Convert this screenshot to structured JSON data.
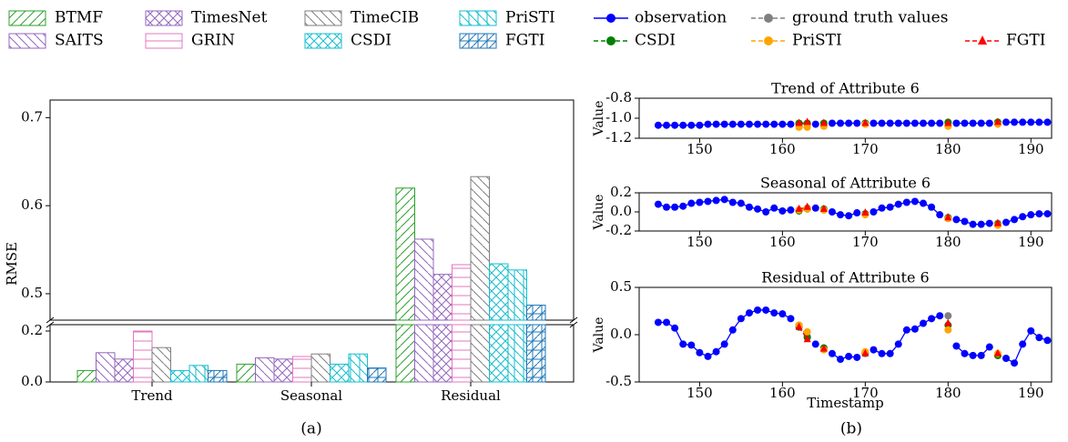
{
  "captions": [
    "(a)",
    "(b)"
  ],
  "chart_data": [
    {
      "type": "bar",
      "y_label": "RMSE",
      "categories": [
        "Trend",
        "Seasonal",
        "Residual"
      ],
      "axes": [
        {
          "ylim": [
            0,
            0.225
          ],
          "yticks": [
            {
              "value": 0,
              "label": "0.0"
            },
            0.2
          ]
        },
        {
          "ylim": [
            0.47,
            0.72
          ],
          "yticks": [
            0.5,
            0.6,
            0.7
          ]
        }
      ],
      "series": [
        {
          "name": "BTMF",
          "color": "#2ca02c",
          "hatch": "/",
          "values": [
            0.045,
            0.07,
            0.62
          ]
        },
        {
          "name": "SAITS",
          "color": "#9467bd",
          "hatch": "\\",
          "values": [
            0.115,
            0.095,
            0.562
          ]
        },
        {
          "name": "TimesNet",
          "color": "#9467bd",
          "hatch": "/\\",
          "values": [
            0.09,
            0.09,
            0.522
          ]
        },
        {
          "name": "GRIN",
          "color": "#e377c2",
          "hatch": "-",
          "values": [
            0.2,
            0.1,
            0.533
          ]
        },
        {
          "name": "TimeCIB",
          "color": "#7f7f7f",
          "hatch": "\\",
          "values": [
            0.135,
            0.11,
            0.633
          ]
        },
        {
          "name": "CSDI",
          "color": "#17becf",
          "hatch": "/\\",
          "values": [
            0.045,
            0.07,
            0.534
          ]
        },
        {
          "name": "PriSTI",
          "color": "#17becf",
          "hatch": "|\\",
          "values": [
            0.065,
            0.11,
            0.527
          ]
        },
        {
          "name": "FGTI",
          "color": "#1f77b4",
          "hatch": "+/",
          "values": [
            0.045,
            0.055,
            0.487
          ]
        }
      ]
    },
    {
      "type": "line",
      "title": "Trend of Attribute 6",
      "y_label": "Value",
      "x": [
        145,
        146,
        147,
        148,
        149,
        150,
        151,
        152,
        153,
        154,
        155,
        156,
        157,
        158,
        159,
        160,
        161,
        162,
        163,
        164,
        165,
        166,
        167,
        168,
        169,
        170,
        171,
        172,
        173,
        174,
        175,
        176,
        177,
        178,
        179,
        180,
        181,
        182,
        183,
        184,
        185,
        186,
        187,
        188,
        189,
        190,
        191,
        192
      ],
      "xlim": [
        142.7,
        192.5
      ],
      "ylim": [
        -1.2,
        -0.8
      ],
      "xticks": [
        150,
        160,
        170,
        180,
        190
      ],
      "yticks": [
        -0.8,
        {
          "value": -1.0,
          "label": "-1.0"
        },
        -1.2
      ],
      "series": [
        {
          "name": "observation",
          "color": "#0000ff",
          "marker": "circle",
          "linestyle": "solid",
          "values": [
            -1.07,
            -1.07,
            -1.07,
            -1.07,
            -1.07,
            -1.07,
            -1.06,
            -1.06,
            -1.06,
            -1.06,
            -1.06,
            -1.06,
            -1.06,
            -1.06,
            -1.06,
            -1.06,
            -1.06,
            null,
            null,
            -1.06,
            null,
            -1.05,
            -1.05,
            -1.05,
            -1.05,
            null,
            -1.05,
            -1.05,
            -1.05,
            -1.05,
            -1.05,
            -1.05,
            -1.05,
            -1.05,
            -1.05,
            null,
            -1.05,
            -1.05,
            -1.05,
            -1.05,
            -1.05,
            null,
            -1.04,
            -1.04,
            -1.04,
            -1.04,
            -1.04,
            -1.04
          ]
        },
        {
          "name": "ground truth values",
          "color": "#808080",
          "marker": "circle",
          "linestyle": "dashed",
          "x": [
            162,
            163,
            165,
            170,
            180,
            186
          ],
          "values": [
            -1.06,
            -1.06,
            -1.06,
            -1.05,
            -1.05,
            -1.04
          ]
        },
        {
          "name": "CSDI",
          "color": "#008000",
          "marker": "circle",
          "linestyle": "dashed",
          "x": [
            162,
            163,
            165,
            170,
            180,
            186
          ],
          "values": [
            -1.05,
            -1.05,
            -1.05,
            -1.05,
            -1.04,
            -1.04
          ]
        },
        {
          "name": "PriSTI",
          "color": "#ffa500",
          "marker": "circle",
          "linestyle": "dashed",
          "x": [
            162,
            163,
            165,
            170,
            180,
            186
          ],
          "values": [
            -1.09,
            -1.09,
            -1.08,
            -1.06,
            -1.08,
            -1.06
          ]
        },
        {
          "name": "FGTI",
          "color": "#ff0000",
          "marker": "triangle",
          "linestyle": "dashed",
          "x": [
            162,
            163,
            165,
            170,
            180,
            186
          ],
          "values": [
            -1.05,
            -1.04,
            -1.05,
            -1.05,
            -1.05,
            -1.04
          ]
        }
      ]
    },
    {
      "type": "line",
      "title": "Seasonal of Attribute 6",
      "y_label": "Value",
      "x": [
        145,
        146,
        147,
        148,
        149,
        150,
        151,
        152,
        153,
        154,
        155,
        156,
        157,
        158,
        159,
        160,
        161,
        162,
        163,
        164,
        165,
        166,
        167,
        168,
        169,
        170,
        171,
        172,
        173,
        174,
        175,
        176,
        177,
        178,
        179,
        180,
        181,
        182,
        183,
        184,
        185,
        186,
        187,
        188,
        189,
        190,
        191,
        192
      ],
      "xlim": [
        142.7,
        192.5
      ],
      "ylim": [
        -0.2,
        0.2
      ],
      "xticks": [
        150,
        160,
        170,
        180,
        190
      ],
      "yticks": [
        -0.2,
        {
          "value": 0,
          "label": "0.0"
        },
        0.2
      ],
      "series": [
        {
          "color": "#0000ff",
          "marker": "circle",
          "linestyle": "solid",
          "values": [
            0.08,
            0.05,
            0.05,
            0.06,
            0.09,
            0.1,
            0.11,
            0.12,
            0.13,
            0.1,
            0.09,
            0.05,
            0.03,
            0.0,
            0.04,
            0.01,
            0.02,
            null,
            null,
            0.04,
            null,
            0.0,
            -0.03,
            -0.04,
            -0.01,
            null,
            0.0,
            0.04,
            0.05,
            0.08,
            0.1,
            0.11,
            0.09,
            0.05,
            -0.03,
            null,
            -0.08,
            -0.1,
            -0.13,
            -0.13,
            -0.12,
            null,
            -0.11,
            -0.08,
            -0.05,
            -0.03,
            -0.02,
            -0.02
          ]
        },
        {
          "color": "#808080",
          "marker": "circle",
          "linestyle": "dashed",
          "x": [
            162,
            163,
            165,
            170,
            180,
            186
          ],
          "values": [
            0.02,
            0.04,
            0.02,
            -0.02,
            -0.06,
            -0.12
          ]
        },
        {
          "color": "#008000",
          "marker": "circle",
          "linestyle": "dashed",
          "x": [
            162,
            163,
            165,
            170,
            180,
            186
          ],
          "values": [
            0.01,
            0.03,
            0.03,
            -0.02,
            -0.06,
            -0.13
          ]
        },
        {
          "color": "#ffa500",
          "marker": "circle",
          "linestyle": "dashed",
          "x": [
            162,
            163,
            165,
            170,
            180,
            186
          ],
          "values": [
            0.02,
            0.03,
            0.02,
            -0.03,
            -0.07,
            -0.14
          ]
        },
        {
          "color": "#ff0000",
          "marker": "triangle",
          "linestyle": "dashed",
          "x": [
            162,
            163,
            165,
            170,
            180,
            186
          ],
          "values": [
            0.03,
            0.05,
            0.03,
            -0.01,
            -0.06,
            -0.12
          ]
        }
      ]
    },
    {
      "type": "line",
      "title": "Residual of Attribute 6",
      "y_label": "Value",
      "x_label": "Timestamp",
      "x": [
        145,
        146,
        147,
        148,
        149,
        150,
        151,
        152,
        153,
        154,
        155,
        156,
        157,
        158,
        159,
        160,
        161,
        162,
        163,
        164,
        165,
        166,
        167,
        168,
        169,
        170,
        171,
        172,
        173,
        174,
        175,
        176,
        177,
        178,
        179,
        180,
        181,
        182,
        183,
        184,
        185,
        186,
        187,
        188,
        189,
        190,
        191,
        192
      ],
      "xlim": [
        142.7,
        192.5
      ],
      "ylim": [
        -0.5,
        0.5
      ],
      "xticks": [
        150,
        160,
        170,
        180,
        190
      ],
      "yticks": [
        -0.5,
        {
          "value": 0,
          "label": "0.0"
        },
        0.5
      ],
      "series": [
        {
          "color": "#0000ff",
          "marker": "circle",
          "linestyle": "solid",
          "values": [
            0.13,
            0.13,
            0.07,
            -0.1,
            -0.11,
            -0.19,
            -0.23,
            -0.18,
            -0.1,
            0.05,
            0.17,
            0.23,
            0.26,
            0.26,
            0.23,
            0.22,
            0.17,
            null,
            null,
            -0.1,
            null,
            -0.2,
            -0.26,
            -0.23,
            -0.24,
            null,
            -0.16,
            -0.2,
            -0.2,
            -0.1,
            0.05,
            0.06,
            0.12,
            0.17,
            0.2,
            null,
            -0.12,
            -0.2,
            -0.22,
            -0.22,
            -0.13,
            null,
            -0.25,
            -0.3,
            -0.1,
            0.04,
            -0.03,
            -0.06
          ]
        },
        {
          "color": "#808080",
          "marker": "circle",
          "linestyle": "dashed",
          "x": [
            162,
            163,
            165,
            170,
            180,
            186
          ],
          "values": [
            0.1,
            -0.02,
            -0.15,
            -0.2,
            0.2,
            -0.22
          ]
        },
        {
          "color": "#008000",
          "marker": "circle",
          "linestyle": "dashed",
          "x": [
            162,
            163,
            165,
            170,
            180,
            186
          ],
          "values": [
            0.08,
            -0.03,
            -0.14,
            -0.19,
            0.1,
            -0.22
          ]
        },
        {
          "color": "#ffa500",
          "marker": "circle",
          "linestyle": "dashed",
          "x": [
            162,
            163,
            165,
            170,
            180,
            186
          ],
          "values": [
            0.1,
            0.03,
            -0.16,
            -0.18,
            0.05,
            -0.2
          ]
        },
        {
          "color": "#ff0000",
          "marker": "triangle",
          "linestyle": "dashed",
          "x": [
            162,
            163,
            165,
            170,
            180,
            186
          ],
          "values": [
            0.08,
            -0.05,
            -0.15,
            -0.2,
            0.12,
            -0.2
          ]
        }
      ]
    }
  ]
}
